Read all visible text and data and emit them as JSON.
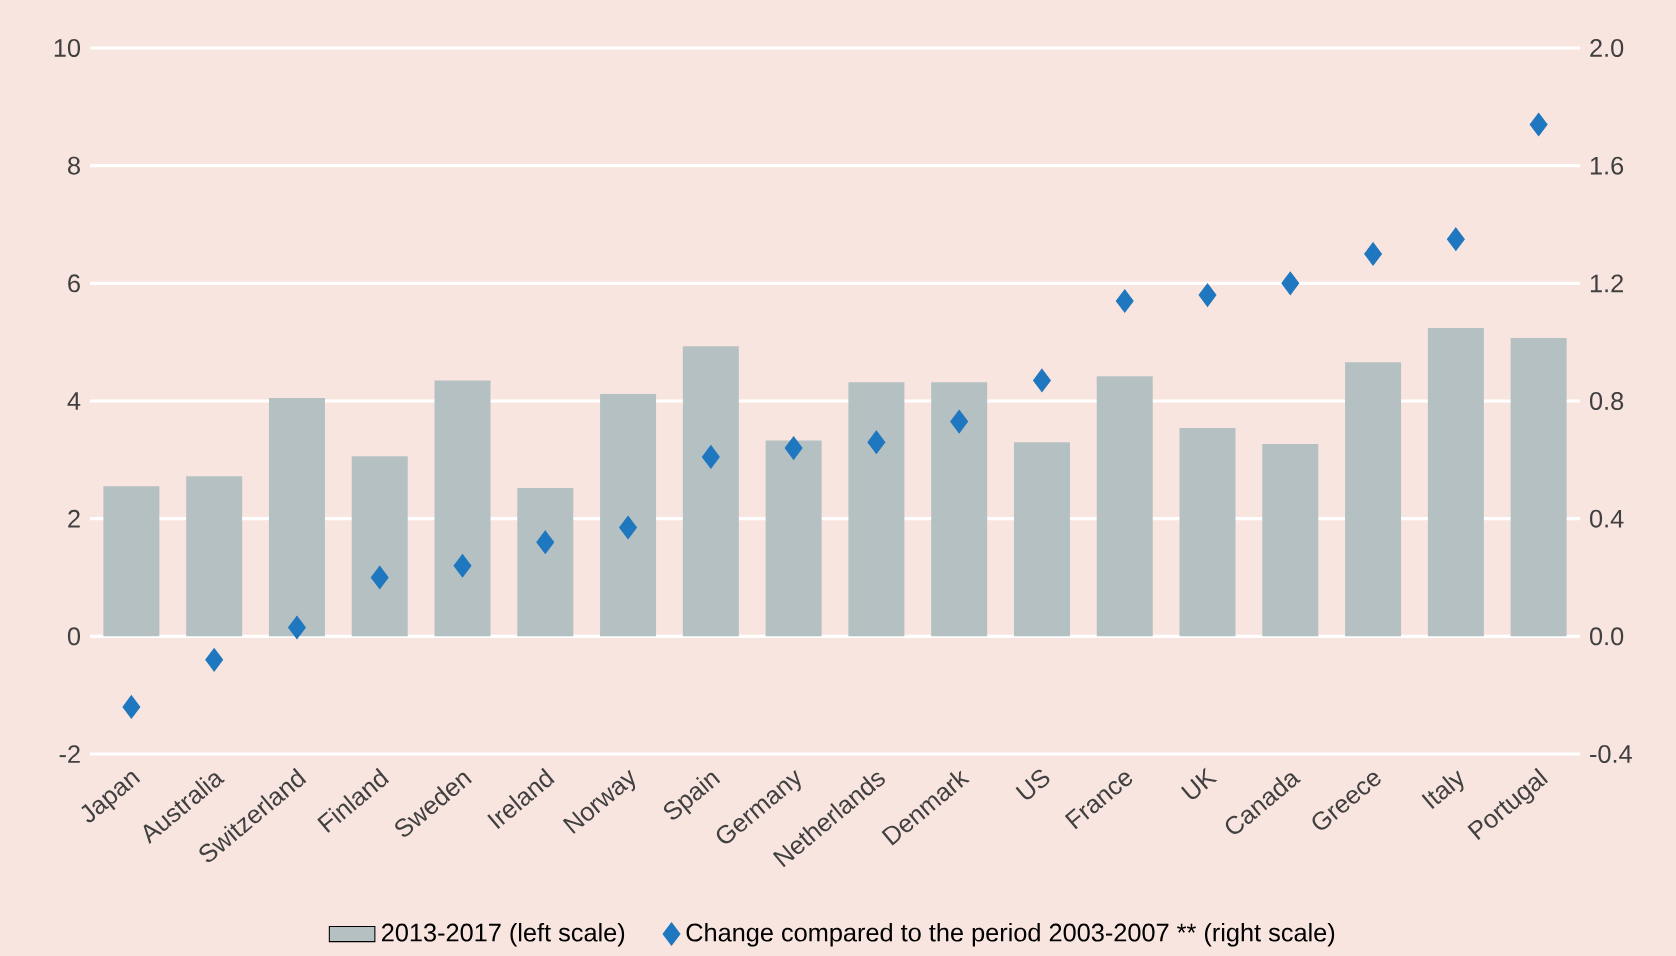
{
  "chart_data": {
    "type": "bar",
    "categories": [
      "Japan",
      "Australia",
      "Switzerland",
      "Finland",
      "Sweden",
      "Ireland",
      "Norway",
      "Spain",
      "Germany",
      "Netherlands",
      "Denmark",
      "US",
      "France",
      "UK",
      "Canada",
      "Greece",
      "Italy",
      "Portugal"
    ],
    "series": [
      {
        "name": "2013-2017 (left scale)",
        "color": "#b4c0c2",
        "values": [
          2.55,
          2.72,
          4.05,
          3.06,
          4.35,
          2.52,
          4.12,
          4.93,
          3.33,
          4.32,
          4.32,
          3.3,
          4.42,
          3.54,
          3.27,
          4.66,
          5.24,
          5.07
        ]
      },
      {
        "name": "Change compared to the period 2003-2007 ** (right scale)",
        "type": "scatter",
        "axis": "y2",
        "marker": "diamond",
        "color": "#1f77bf",
        "values": [
          -0.24,
          -0.08,
          0.03,
          0.2,
          0.24,
          0.32,
          0.37,
          0.61,
          0.64,
          0.66,
          0.73,
          0.87,
          1.14,
          1.16,
          1.2,
          1.3,
          1.35,
          1.74
        ]
      }
    ],
    "ylim": [
      -2,
      10
    ],
    "yticks": [
      -2,
      0,
      2,
      4,
      6,
      8,
      10
    ],
    "y2lim": [
      -0.4,
      2.0
    ],
    "y2ticks": [
      {
        "value": -0.4,
        "label": "-0.4"
      },
      {
        "value": 0,
        "label": "0.0"
      },
      {
        "value": 0.4,
        "label": "0.4"
      },
      {
        "value": 0.8,
        "label": "0.8"
      },
      {
        "value": 1.2,
        "label": "1.2"
      },
      {
        "value": 1.6,
        "label": "1.6"
      },
      {
        "value": 2.0,
        "label": "2.0"
      }
    ],
    "grid": "y",
    "legend": "bottom"
  }
}
